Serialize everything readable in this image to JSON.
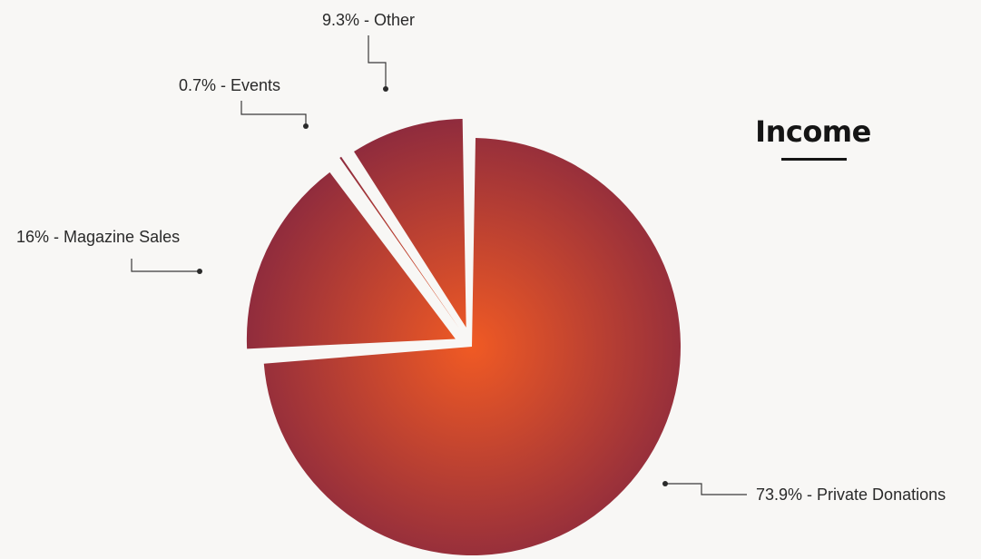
{
  "chart_data": {
    "type": "pie",
    "title": "Income",
    "categories": [
      "Private Donations",
      "Magazine Sales",
      "Events",
      "Other"
    ],
    "values": [
      73.9,
      16,
      0.7,
      9.3
    ],
    "labels": [
      "73.9% - Private Donations",
      "16% - Magazine Sales",
      "0.7% - Events",
      "9.3% - Other"
    ],
    "exploded": true,
    "legend": "none",
    "colors": {
      "center": "#f05a24",
      "edge": "#8c2a3e"
    }
  }
}
